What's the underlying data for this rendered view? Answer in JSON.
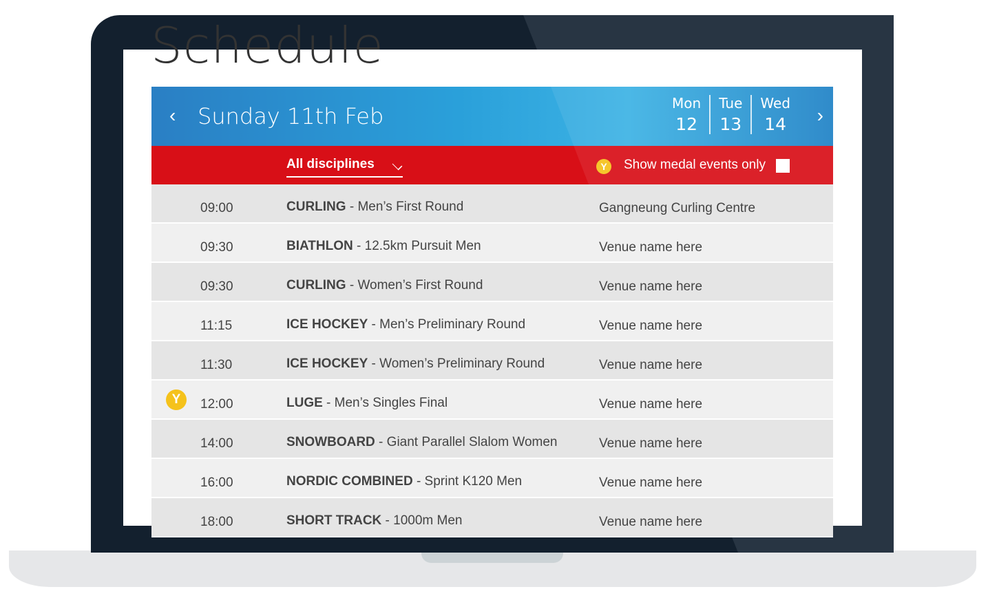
{
  "page_title": "Schedule",
  "header": {
    "current_date": "Sunday 11th Feb",
    "prev_icon": "chevron-left-icon",
    "next_icon": "chevron-right-icon",
    "days": [
      {
        "name": "Mon",
        "num": "12"
      },
      {
        "name": "Tue",
        "num": "13"
      },
      {
        "name": "Wed",
        "num": "14"
      }
    ]
  },
  "filters": {
    "discipline": "All disciplines",
    "medal_label": "Show medal events only",
    "medal_checked": false
  },
  "colors": {
    "blue": "#2a9fd9",
    "red": "#d80f17",
    "medal": "#f5c21b",
    "bezel": "#13202e"
  },
  "events": [
    {
      "time": "09:00",
      "sport": "CURLING",
      "event": " - Men’s First Round",
      "venue": "Gangneung Curling Centre",
      "medal": false
    },
    {
      "time": "09:30",
      "sport": "BIATHLON",
      "event": " - 12.5km Pursuit Men",
      "venue": "Venue name here",
      "medal": false
    },
    {
      "time": "09:30",
      "sport": "CURLING",
      "event": " - Women’s First Round",
      "venue": "Venue name here",
      "medal": false
    },
    {
      "time": "11:15",
      "sport": "ICE HOCKEY",
      "event": " - Men’s Preliminary Round",
      "venue": "Venue name here",
      "medal": false
    },
    {
      "time": "11:30",
      "sport": "ICE HOCKEY",
      "event": " - Women’s Preliminary Round",
      "venue": "Venue name here",
      "medal": false
    },
    {
      "time": "12:00",
      "sport": "LUGE",
      "event": " - Men’s Singles Final",
      "venue": "Venue name here",
      "medal": true
    },
    {
      "time": "14:00",
      "sport": "SNOWBOARD",
      "event": " - Giant Parallel Slalom Women",
      "venue": "Venue name here",
      "medal": false
    },
    {
      "time": "16:00",
      "sport": "NORDIC COMBINED",
      "event": " - Sprint K120 Men",
      "venue": "Venue name here",
      "medal": false
    },
    {
      "time": "18:00",
      "sport": "SHORT TRACK",
      "event": " - 1000m Men",
      "venue": "Venue name here",
      "medal": false
    }
  ]
}
